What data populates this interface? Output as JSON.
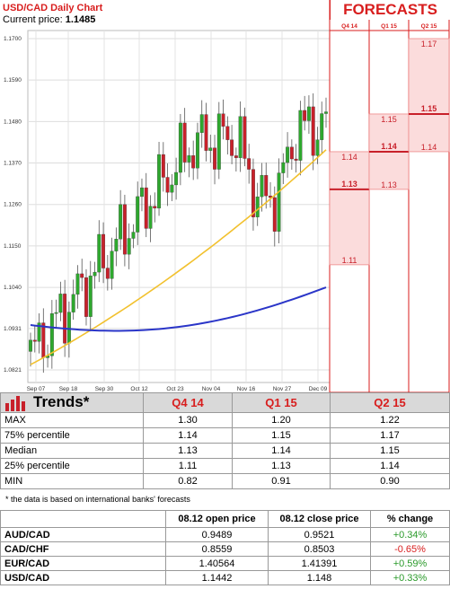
{
  "header": {
    "title": "USD/CAD Daily Chart",
    "current_price_label": "Current price:",
    "current_price_value": "1.1485",
    "forecasts_title": "FORECASTS"
  },
  "chart_data": {
    "type": "candlestick",
    "y_ticks": [
      "1.1700",
      "1.1590",
      "1.1480",
      "1.1370",
      "1.1260",
      "1.1150",
      "1.1040",
      "1.0931",
      "1.0821"
    ],
    "x_ticks": [
      "Sep 07",
      "Sep 18",
      "Sep 30",
      "Oct 12",
      "Oct 23",
      "Nov 04",
      "Nov 16",
      "Nov 27",
      "Dec 09"
    ],
    "forecast_columns": [
      "Q4 14",
      "Q1 15",
      "Q2 15"
    ],
    "forecast_values": [
      {
        "column": "Q4 14",
        "labels": [
          "1.14",
          "1.13",
          "1.11"
        ],
        "bold": "1.13"
      },
      {
        "column": "Q1 15",
        "labels": [
          "1.15",
          "1.14",
          "1.13"
        ],
        "bold": "1.14"
      },
      {
        "column": "Q2 15",
        "labels": [
          "1.17",
          "1.15",
          "1.14"
        ],
        "bold": "1.15"
      }
    ],
    "colors": {
      "up": "#2ea82e",
      "down": "#c8202a",
      "ma_short": "#f2c12e",
      "ma_long": "#2a35c8",
      "forecast": "#d81e1e"
    }
  },
  "trends": {
    "title": "Trends*",
    "columns": [
      "Q4 14",
      "Q1 15",
      "Q2 15"
    ],
    "rows": [
      {
        "label": "MAX",
        "values": [
          "1.30",
          "1.20",
          "1.22"
        ]
      },
      {
        "label": "75% percentile",
        "values": [
          "1.14",
          "1.15",
          "1.17"
        ]
      },
      {
        "label": "Median",
        "values": [
          "1.13",
          "1.14",
          "1.15"
        ]
      },
      {
        "label": "25% percentile",
        "values": [
          "1.11",
          "1.13",
          "1.14"
        ]
      },
      {
        "label": "MIN",
        "values": [
          "0.82",
          "0.91",
          "0.90"
        ]
      }
    ],
    "note": "* the data is based on international banks' forecasts"
  },
  "prices": {
    "columns": [
      "08.12 open price",
      "08.12 close price",
      "% change"
    ],
    "rows": [
      {
        "pair": "AUD/CAD",
        "open": "0.9489",
        "close": "0.9521",
        "change": "+0.34%"
      },
      {
        "pair": "CAD/CHF",
        "open": "0.8559",
        "close": "0.8503",
        "change": "-0.65%"
      },
      {
        "pair": "EUR/CAD",
        "open": "1.40564",
        "close": "1.41391",
        "change": "+0.59%"
      },
      {
        "pair": "USD/CAD",
        "open": "1.1442",
        "close": "1.148",
        "change": "+0.33%"
      }
    ]
  }
}
